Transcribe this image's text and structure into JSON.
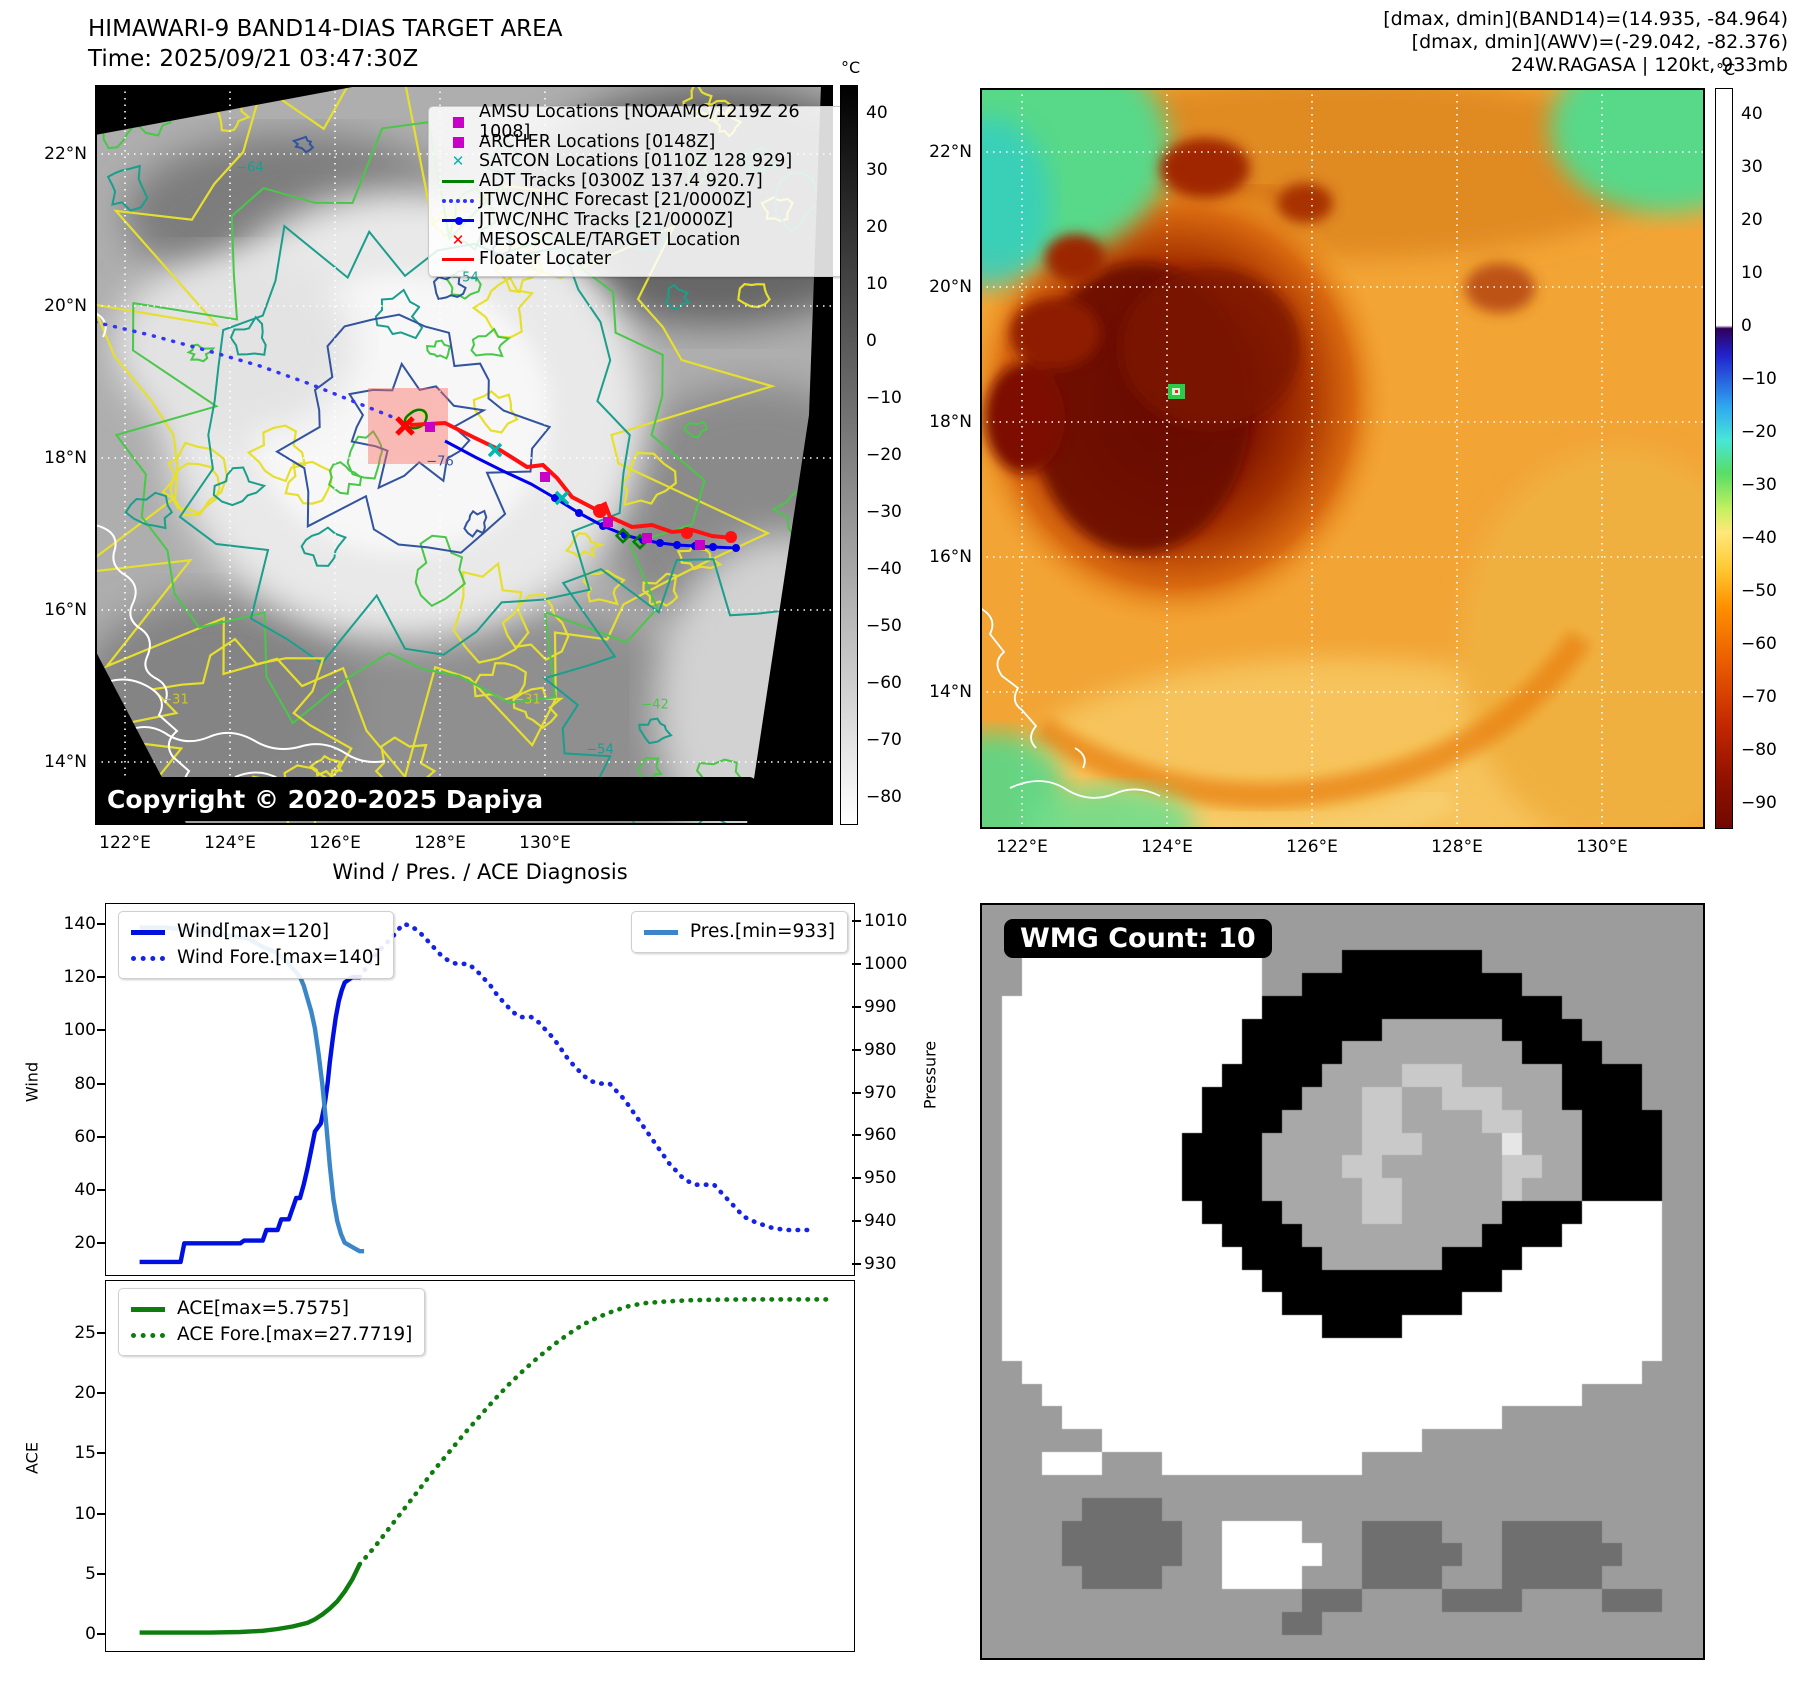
{
  "band14_panel": {
    "title": "HIMAWARI-9 BAND14-DIAS TARGET AREA",
    "subtitle": "Time: 2025/09/21 03:47:30Z",
    "copyright": "Copyright © 2020-2025 Dapiya",
    "x_ticks": [
      "122°E",
      "124°E",
      "126°E",
      "128°E",
      "130°E"
    ],
    "y_ticks": [
      "22°N",
      "20°N",
      "18°N",
      "16°N",
      "14°N"
    ],
    "colorbar": {
      "unit": "°C",
      "ticks": [
        "40",
        "30",
        "20",
        "10",
        "0",
        "−10",
        "−20",
        "−30",
        "−40",
        "−50",
        "−60",
        "−70",
        "−80"
      ]
    },
    "legend": [
      {
        "label": "AMSU Locations [NOAAMC/1219Z 26 1008]",
        "marker": "square",
        "color": "#c800c8"
      },
      {
        "label": "ARCHER Locations [0148Z]",
        "marker": "square",
        "color": "#c800c8"
      },
      {
        "label": "SATCON Locations [0110Z 128 929]",
        "marker": "x",
        "color": "#00b8b0"
      },
      {
        "label": "ADT Tracks [0300Z 137.4 920.7]",
        "marker": "line",
        "color": "#008000"
      },
      {
        "label": "JTWC/NHC Forecast [21/0000Z]",
        "marker": "dotted",
        "color": "#3333ff"
      },
      {
        "label": "JTWC/NHC Tracks [21/0000Z]",
        "marker": "linedot",
        "color": "#0000ff"
      },
      {
        "label": "MESOSCALE/TARGET Location",
        "marker": "x",
        "color": "#ff0000"
      },
      {
        "label": "Floater Locater",
        "marker": "line",
        "color": "#ff0000"
      }
    ],
    "contour_labels": [
      "−64",
      "−54",
      "−76",
      "−54",
      "−42",
      "−31",
      "−31"
    ]
  },
  "awv_panel": {
    "header_lines": [
      "[dmax, dmin](BAND14)=(14.935, -84.964)",
      "[dmax, dmin](AWV)=(-29.042, -82.376)",
      "24W.RAGASA | 120kt, 933mb"
    ],
    "x_ticks": [
      "122°E",
      "124°E",
      "126°E",
      "128°E",
      "130°E"
    ],
    "y_ticks": [
      "22°N",
      "20°N",
      "18°N",
      "16°N",
      "14°N"
    ],
    "colorbar": {
      "unit": "°C",
      "ticks": [
        "40",
        "30",
        "20",
        "10",
        "0",
        "−10",
        "−20",
        "−30",
        "−40",
        "−50",
        "−60",
        "−70",
        "−80",
        "−90"
      ]
    }
  },
  "charts": {
    "title": "Wind / Pres. / ACE Diagnosis",
    "wind_label": "Wind",
    "pressure_label": "Pressure",
    "ace_label": "ACE",
    "wind_ticks": [
      "140",
      "120",
      "100",
      "80",
      "60",
      "40",
      "20"
    ],
    "pressure_ticks": [
      "1010",
      "1000",
      "990",
      "980",
      "970",
      "960",
      "950",
      "940",
      "930"
    ],
    "ace_ticks": [
      "25",
      "20",
      "15",
      "10",
      "5",
      "0"
    ],
    "legend": {
      "wind": "Wind[max=120]",
      "wind_fore": "Wind Fore.[max=140]",
      "pres": "Pres.[min=933]",
      "ace": "ACE[max=5.7575]",
      "ace_fore": "ACE Fore.[max=27.7719]"
    }
  },
  "chart_data": [
    {
      "type": "line",
      "title": "Wind / Pres. / ACE Diagnosis",
      "ylabel_left": "Wind",
      "ylabel_right": "Pressure",
      "ylim_wind": [
        7,
        147.5
      ],
      "ylim_pressure": [
        927,
        1014
      ],
      "grid": false,
      "legend_position": "upper left / upper right",
      "series": [
        {
          "name": "Wind[max=120]",
          "style": "solid",
          "color": "#0010e0",
          "axis": "wind",
          "points": [
            [
              4.5,
              13
            ],
            [
              10,
              13
            ],
            [
              10.5,
              20
            ],
            [
              18,
              20
            ],
            [
              18.5,
              21
            ],
            [
              21,
              21
            ],
            [
              21.5,
              25
            ],
            [
              23,
              25
            ],
            [
              23.5,
              29
            ],
            [
              24.5,
              29
            ],
            [
              25,
              33
            ],
            [
              25.5,
              37
            ],
            [
              26,
              37
            ],
            [
              26.5,
              42
            ],
            [
              27,
              48
            ],
            [
              27.5,
              55
            ],
            [
              28,
              62
            ],
            [
              28.8,
              65
            ],
            [
              29.3,
              72
            ],
            [
              29.7,
              80
            ],
            [
              30,
              88
            ],
            [
              30.4,
              97
            ],
            [
              30.8,
              105
            ],
            [
              31.2,
              111
            ],
            [
              31.6,
              115
            ],
            [
              32,
              118
            ],
            [
              33,
              120
            ],
            [
              34,
              120
            ]
          ]
        },
        {
          "name": "Wind Fore.[max=140]",
          "style": "dotted",
          "color": "#1522e8",
          "axis": "wind",
          "points": [
            [
              34,
              120
            ],
            [
              35,
              124
            ],
            [
              36,
              128
            ],
            [
              37,
              131
            ],
            [
              38,
              134
            ],
            [
              39,
              137
            ],
            [
              39.5,
              139
            ],
            [
              40,
              140
            ],
            [
              41,
              139
            ],
            [
              42,
              137
            ],
            [
              43,
              134
            ],
            [
              44,
              131
            ],
            [
              45,
              128
            ],
            [
              46,
              126
            ],
            [
              47,
              125
            ],
            [
              48.5,
              125
            ],
            [
              49.5,
              123
            ],
            [
              50.5,
              120
            ],
            [
              51.5,
              117
            ],
            [
              52.5,
              113
            ],
            [
              53.5,
              110
            ],
            [
              54.5,
              107
            ],
            [
              55.5,
              105
            ],
            [
              57,
              105
            ],
            [
              58,
              103
            ],
            [
              59,
              100
            ],
            [
              60,
              97
            ],
            [
              61,
              93
            ],
            [
              62,
              89
            ],
            [
              63,
              86
            ],
            [
              64,
              83
            ],
            [
              65,
              81
            ],
            [
              66,
              80
            ],
            [
              67.5,
              80
            ],
            [
              68.5,
              77
            ],
            [
              69.5,
              74
            ],
            [
              70.5,
              70
            ],
            [
              71.5,
              66
            ],
            [
              72.5,
              62
            ],
            [
              73.5,
              58
            ],
            [
              74.5,
              54
            ],
            [
              75.5,
              50
            ],
            [
              76.5,
              47
            ],
            [
              77.5,
              44
            ],
            [
              79,
              42
            ],
            [
              81.5,
              42
            ],
            [
              82.5,
              39
            ],
            [
              83.5,
              36
            ],
            [
              84.5,
              33
            ],
            [
              85.5,
              30
            ],
            [
              87,
              28
            ],
            [
              89,
              26
            ],
            [
              91,
              25
            ],
            [
              94,
              25
            ]
          ]
        },
        {
          "name": "Pres.[min=933]",
          "style": "solid",
          "color": "#3a86c8",
          "axis": "pressure",
          "points": [
            [
              4.5,
              1008.5
            ],
            [
              8,
              1008.5
            ],
            [
              11,
              1008
            ],
            [
              14,
              1007.5
            ],
            [
              17,
              1006.5
            ],
            [
              19,
              1006
            ],
            [
              21,
              1004
            ],
            [
              22.5,
              1003
            ],
            [
              24,
              1001
            ],
            [
              25,
              999
            ],
            [
              26,
              997
            ],
            [
              26.5,
              995
            ],
            [
              27,
              992
            ],
            [
              27.5,
              989
            ],
            [
              28,
              985
            ],
            [
              28.5,
              979
            ],
            [
              29,
              972
            ],
            [
              29.5,
              963
            ],
            [
              30,
              953
            ],
            [
              30.5,
              945
            ],
            [
              31,
              940
            ],
            [
              31.5,
              937
            ],
            [
              32,
              935
            ],
            [
              33,
              934
            ],
            [
              34,
              933
            ],
            [
              34.6,
              933
            ]
          ]
        }
      ]
    },
    {
      "type": "line",
      "ylabel_left": "ACE",
      "ylim": [
        -1.6,
        29.3
      ],
      "grid": false,
      "legend_position": "upper left",
      "series": [
        {
          "name": "ACE[max=5.7575]",
          "style": "solid",
          "color": "#0e7c0e",
          "axis": "ace",
          "points": [
            [
              4.5,
              0.1
            ],
            [
              14,
              0.1
            ],
            [
              18,
              0.15
            ],
            [
              21,
              0.25
            ],
            [
              23,
              0.4
            ],
            [
              25,
              0.6
            ],
            [
              27,
              0.9
            ],
            [
              28,
              1.2
            ],
            [
              29,
              1.6
            ],
            [
              30,
              2.1
            ],
            [
              31,
              2.7
            ],
            [
              32,
              3.5
            ],
            [
              33,
              4.5
            ],
            [
              34,
              5.76
            ]
          ]
        },
        {
          "name": "ACE Fore.[max=27.7719]",
          "style": "dotted",
          "color": "#0e7c0e",
          "axis": "ace",
          "points": [
            [
              34,
              5.76
            ],
            [
              36,
              7.2
            ],
            [
              38,
              8.8
            ],
            [
              40,
              10.4
            ],
            [
              42,
              12.0
            ],
            [
              44,
              13.6
            ],
            [
              46,
              15.1
            ],
            [
              48,
              16.6
            ],
            [
              50,
              18.0
            ],
            [
              52,
              19.4
            ],
            [
              54,
              20.7
            ],
            [
              56,
              21.9
            ],
            [
              58,
              23.0
            ],
            [
              60,
              24.0
            ],
            [
              62,
              24.9
            ],
            [
              64,
              25.7
            ],
            [
              66,
              26.3
            ],
            [
              68,
              26.8
            ],
            [
              70,
              27.2
            ],
            [
              72,
              27.45
            ],
            [
              75,
              27.6
            ],
            [
              78,
              27.7
            ],
            [
              82,
              27.75
            ],
            [
              86,
              27.77
            ],
            [
              90,
              27.77
            ],
            [
              94,
              27.77
            ],
            [
              97,
              27.77
            ]
          ]
        }
      ]
    }
  ],
  "wmg_panel": {
    "label": "WMG Count: 10",
    "palette": {
      "G": "#9c9c9c",
      "W": "#ffffff",
      "B": "#000000",
      "D": "#6f6f6f",
      "M": "#a8a8a8",
      "L": "#c9c9c9",
      "E": "#e6e6e6"
    },
    "grid": [
      "GGGGGGGGGGGGGGGGGGGGGGGGGGGGGGGGGGGG",
      "GGGWWWWWWWWWWWGGGGGGGGGGGGGGGGGGGGGG",
      "GGWWWWWWWWWWWWGGGGBBBBBBBGGGGGGGGGGG",
      "GGWWWWWWWWWWWWGGBBBBBBBBBBBGGGGGGGGG",
      "GWWWWWWWWWWWWWBBBBBBBBBBBBBBBGGGGGGG",
      "GWWWWWWWWWWWWBBBBBBBMMMMMMBBBBGGGGGG",
      "GWWWWWWWWWWWWBBBBBMMMMMMMMMBBBBGGGGG",
      "GWWWWWWWWWWWBBBBBMMMMLLLMMMMMBBBBGGG",
      "GWWWWWWWWWWBBBBBMMMLLMMLLLMMMBBBBGGG",
      "GWWWWWWWWWWBBBBMMMMLLMMMMLLMMMBBBBGG",
      "GWWWWWWWWWBBBBMMMMMLLLMMMMEMMMBBBBGG",
      "GWWWWWWWWWBBBBMMMMLLMMMMMMLLMMBBBBGG",
      "GWWWWWWWWWBBBBMMMMMLLMMMMMLMMMBBBBGG",
      "GWWWWWWWWWWBBBBMMMMLLMMMMMBBBBWWWWGG",
      "GWWWWWWWWWWWBBBBMMMMMMMMMBBBBWWWWWGG",
      "GWWWWWWWWWWWWBBBBMMMMMMBBBBWWWWWWWGG",
      "GWWWWWWWWWWWWWBBBBBBBBBBBBWWWWWWWWGG",
      "GWWWWWWWWWWWWWWBBBBBBBBBWWWWWWWWWWGG",
      "GWWWWWWWWWWWWWWWWBBBBWWWWWWWWWWWWWGG",
      "GWWWWWWWWWWWWWWWWWWWWWWWWWWWWWWWWWGG",
      "GGWWWWWWWWWWWWWWWWWWWWWWWWWWWWWWWGGG",
      "GGGWWWWWWWWWWWWWWWWWWWWWWWWWWWGGGGGG",
      "GGGGWWWWWWWWWWWWWWWWWWWWWWGGGGGGGGGG",
      "GGGGGGWWWWWWWWWWWWWWWWGGGGGGGGGGGGGG",
      "GGGWWWGGGWWWWWWWWWWGGGGGGGGGGGGGGGGG",
      "GGGGGGGGGGGGGGGGGGGGGGGGGGGGGGGGGGGG",
      "GGGGGDDDDGGGGGGGGGGGGGGGGGGGGGGGGGGG",
      "GGGGDDDDDDGGWWWWGGGDDDDGGGDDDDDGGGGG",
      "GGGGDDDDDDGGWWWWWGGDDDDDGGDDDDDDGGGG",
      "GGGGGDDDDGGGWWWWGGGDDDDGGGDDDDDGGGGG",
      "GGGGGGGGGGGGGGGGDDDGGGGDDDDGGGGDDDGG",
      "GGGGGGGGGGGGGGGDDGGGGGGGGGGGGGGGGGGG",
      "GGGGGGGGGGGGGGGGGGGGGGGGGGGGGGGGGGGG"
    ]
  }
}
